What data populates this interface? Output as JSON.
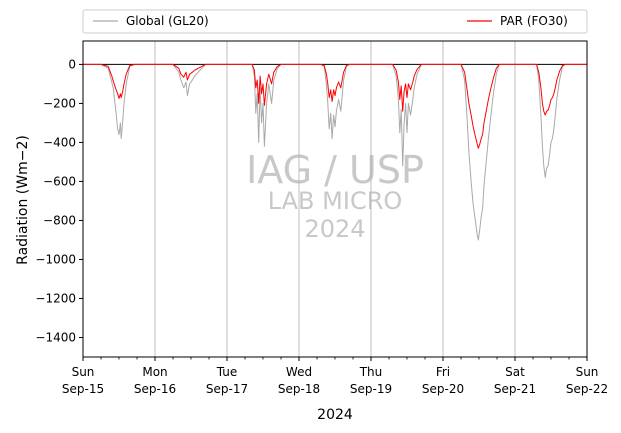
{
  "chart_data": {
    "type": "line",
    "title": "",
    "xlabel": "2024",
    "ylabel": "Radiation (Wm−2)",
    "ylim": [
      -1500,
      120
    ],
    "xlim_days": [
      "2024-09-15",
      "2024-09-22"
    ],
    "yticks": [
      0,
      -200,
      -400,
      -600,
      -800,
      -1000,
      -1200,
      -1400
    ],
    "xticks": [
      {
        "day": "Sun",
        "date": "Sep-15"
      },
      {
        "day": "Mon",
        "date": "Sep-16"
      },
      {
        "day": "Tue",
        "date": "Sep-17"
      },
      {
        "day": "Wed",
        "date": "Sep-18"
      },
      {
        "day": "Thu",
        "date": "Sep-19"
      },
      {
        "day": "Fri",
        "date": "Sep-20"
      },
      {
        "day": "Sat",
        "date": "Sep-21"
      },
      {
        "day": "Sun",
        "date": "Sep-22"
      }
    ],
    "grid": "vertical at day ticks",
    "zero_line": true,
    "legend_placement": "top, outside plot",
    "watermark": [
      "IAG / USP",
      "LAB MICRO",
      "2024"
    ],
    "series": [
      {
        "name": "Global (GL20)",
        "color": "#a9a9a9",
        "points": [
          [
            0.0,
            0
          ],
          [
            0.25,
            0
          ],
          [
            0.35,
            -20
          ],
          [
            0.42,
            -120
          ],
          [
            0.46,
            -250
          ],
          [
            0.48,
            -330
          ],
          [
            0.5,
            -360
          ],
          [
            0.52,
            -300
          ],
          [
            0.53,
            -380
          ],
          [
            0.55,
            -300
          ],
          [
            0.57,
            -200
          ],
          [
            0.6,
            -100
          ],
          [
            0.65,
            -10
          ],
          [
            0.72,
            0
          ],
          [
            1.25,
            0
          ],
          [
            1.33,
            -40
          ],
          [
            1.36,
            -80
          ],
          [
            1.4,
            -120
          ],
          [
            1.43,
            -90
          ],
          [
            1.45,
            -160
          ],
          [
            1.48,
            -100
          ],
          [
            1.52,
            -80
          ],
          [
            1.55,
            -60
          ],
          [
            1.6,
            -40
          ],
          [
            1.65,
            -20
          ],
          [
            1.7,
            0
          ],
          [
            2.35,
            0
          ],
          [
            2.38,
            -60
          ],
          [
            2.4,
            -250
          ],
          [
            2.42,
            -150
          ],
          [
            2.44,
            -400
          ],
          [
            2.46,
            -120
          ],
          [
            2.48,
            -300
          ],
          [
            2.5,
            -200
          ],
          [
            2.52,
            -420
          ],
          [
            2.55,
            -200
          ],
          [
            2.58,
            -100
          ],
          [
            2.62,
            -200
          ],
          [
            2.65,
            -80
          ],
          [
            2.7,
            -20
          ],
          [
            2.75,
            0
          ],
          [
            3.3,
            0
          ],
          [
            3.35,
            -10
          ],
          [
            3.38,
            -100
          ],
          [
            3.4,
            -200
          ],
          [
            3.42,
            -330
          ],
          [
            3.44,
            -250
          ],
          [
            3.46,
            -380
          ],
          [
            3.48,
            -260
          ],
          [
            3.5,
            -320
          ],
          [
            3.52,
            -240
          ],
          [
            3.55,
            -180
          ],
          [
            3.58,
            -240
          ],
          [
            3.62,
            -80
          ],
          [
            3.66,
            -10
          ],
          [
            3.7,
            0
          ],
          [
            4.3,
            0
          ],
          [
            4.35,
            -60
          ],
          [
            4.38,
            -180
          ],
          [
            4.4,
            -350
          ],
          [
            4.42,
            -230
          ],
          [
            4.44,
            -520
          ],
          [
            4.46,
            -300
          ],
          [
            4.48,
            -200
          ],
          [
            4.5,
            -350
          ],
          [
            4.52,
            -200
          ],
          [
            4.55,
            -260
          ],
          [
            4.58,
            -180
          ],
          [
            4.6,
            -120
          ],
          [
            4.64,
            -50
          ],
          [
            4.7,
            0
          ],
          [
            5.25,
            0
          ],
          [
            5.3,
            -80
          ],
          [
            5.33,
            -250
          ],
          [
            5.36,
            -450
          ],
          [
            5.39,
            -600
          ],
          [
            5.42,
            -720
          ],
          [
            5.45,
            -800
          ],
          [
            5.47,
            -860
          ],
          [
            5.49,
            -900
          ],
          [
            5.51,
            -850
          ],
          [
            5.53,
            -780
          ],
          [
            5.55,
            -740
          ],
          [
            5.57,
            -620
          ],
          [
            5.6,
            -500
          ],
          [
            5.63,
            -380
          ],
          [
            5.66,
            -280
          ],
          [
            5.7,
            -150
          ],
          [
            5.74,
            -50
          ],
          [
            5.78,
            0
          ],
          [
            6.3,
            0
          ],
          [
            6.33,
            -80
          ],
          [
            6.36,
            -260
          ],
          [
            6.38,
            -420
          ],
          [
            6.4,
            -520
          ],
          [
            6.42,
            -580
          ],
          [
            6.44,
            -530
          ],
          [
            6.46,
            -520
          ],
          [
            6.48,
            -460
          ],
          [
            6.5,
            -400
          ],
          [
            6.52,
            -380
          ],
          [
            6.54,
            -330
          ],
          [
            6.56,
            -260
          ],
          [
            6.58,
            -180
          ],
          [
            6.62,
            -80
          ],
          [
            6.66,
            -10
          ],
          [
            6.7,
            0
          ],
          [
            7.0,
            0
          ]
        ]
      },
      {
        "name": "PAR (FO30)",
        "color": "#ff0000",
        "points": [
          [
            0.0,
            0
          ],
          [
            0.25,
            0
          ],
          [
            0.35,
            -10
          ],
          [
            0.4,
            -60
          ],
          [
            0.45,
            -120
          ],
          [
            0.48,
            -150
          ],
          [
            0.5,
            -175
          ],
          [
            0.52,
            -150
          ],
          [
            0.53,
            -170
          ],
          [
            0.55,
            -140
          ],
          [
            0.57,
            -100
          ],
          [
            0.6,
            -50
          ],
          [
            0.65,
            -5
          ],
          [
            0.72,
            0
          ],
          [
            1.25,
            0
          ],
          [
            1.33,
            -20
          ],
          [
            1.36,
            -50
          ],
          [
            1.4,
            -65
          ],
          [
            1.43,
            -40
          ],
          [
            1.45,
            -80
          ],
          [
            1.48,
            -50
          ],
          [
            1.52,
            -40
          ],
          [
            1.55,
            -30
          ],
          [
            1.6,
            -20
          ],
          [
            1.65,
            -10
          ],
          [
            1.7,
            0
          ],
          [
            2.35,
            0
          ],
          [
            2.38,
            -30
          ],
          [
            2.4,
            -120
          ],
          [
            2.42,
            -80
          ],
          [
            2.44,
            -200
          ],
          [
            2.46,
            -60
          ],
          [
            2.48,
            -150
          ],
          [
            2.5,
            -100
          ],
          [
            2.52,
            -210
          ],
          [
            2.55,
            -100
          ],
          [
            2.58,
            -50
          ],
          [
            2.62,
            -100
          ],
          [
            2.65,
            -40
          ],
          [
            2.7,
            -10
          ],
          [
            2.75,
            0
          ],
          [
            3.3,
            0
          ],
          [
            3.35,
            -5
          ],
          [
            3.38,
            -50
          ],
          [
            3.4,
            -100
          ],
          [
            3.42,
            -170
          ],
          [
            3.44,
            -130
          ],
          [
            3.46,
            -190
          ],
          [
            3.48,
            -130
          ],
          [
            3.5,
            -160
          ],
          [
            3.52,
            -120
          ],
          [
            3.55,
            -90
          ],
          [
            3.58,
            -120
          ],
          [
            3.62,
            -40
          ],
          [
            3.66,
            -5
          ],
          [
            3.7,
            0
          ],
          [
            4.3,
            0
          ],
          [
            4.35,
            -30
          ],
          [
            4.38,
            -90
          ],
          [
            4.4,
            -180
          ],
          [
            4.42,
            -110
          ],
          [
            4.44,
            -240
          ],
          [
            4.46,
            -140
          ],
          [
            4.48,
            -100
          ],
          [
            4.5,
            -170
          ],
          [
            4.52,
            -100
          ],
          [
            4.55,
            -130
          ],
          [
            4.58,
            -90
          ],
          [
            4.6,
            -60
          ],
          [
            4.64,
            -25
          ],
          [
            4.7,
            0
          ],
          [
            5.25,
            0
          ],
          [
            5.3,
            -40
          ],
          [
            5.33,
            -120
          ],
          [
            5.36,
            -200
          ],
          [
            5.39,
            -260
          ],
          [
            5.42,
            -320
          ],
          [
            5.45,
            -370
          ],
          [
            5.47,
            -400
          ],
          [
            5.49,
            -430
          ],
          [
            5.51,
            -410
          ],
          [
            5.53,
            -380
          ],
          [
            5.55,
            -360
          ],
          [
            5.57,
            -300
          ],
          [
            5.6,
            -240
          ],
          [
            5.63,
            -180
          ],
          [
            5.66,
            -130
          ],
          [
            5.7,
            -70
          ],
          [
            5.74,
            -20
          ],
          [
            5.78,
            0
          ],
          [
            6.3,
            0
          ],
          [
            6.33,
            -40
          ],
          [
            6.36,
            -120
          ],
          [
            6.38,
            -200
          ],
          [
            6.4,
            -240
          ],
          [
            6.42,
            -260
          ],
          [
            6.44,
            -240
          ],
          [
            6.46,
            -235
          ],
          [
            6.48,
            -210
          ],
          [
            6.5,
            -180
          ],
          [
            6.52,
            -170
          ],
          [
            6.54,
            -150
          ],
          [
            6.56,
            -120
          ],
          [
            6.58,
            -80
          ],
          [
            6.62,
            -35
          ],
          [
            6.66,
            -5
          ],
          [
            6.7,
            0
          ],
          [
            7.0,
            0
          ]
        ]
      }
    ]
  }
}
